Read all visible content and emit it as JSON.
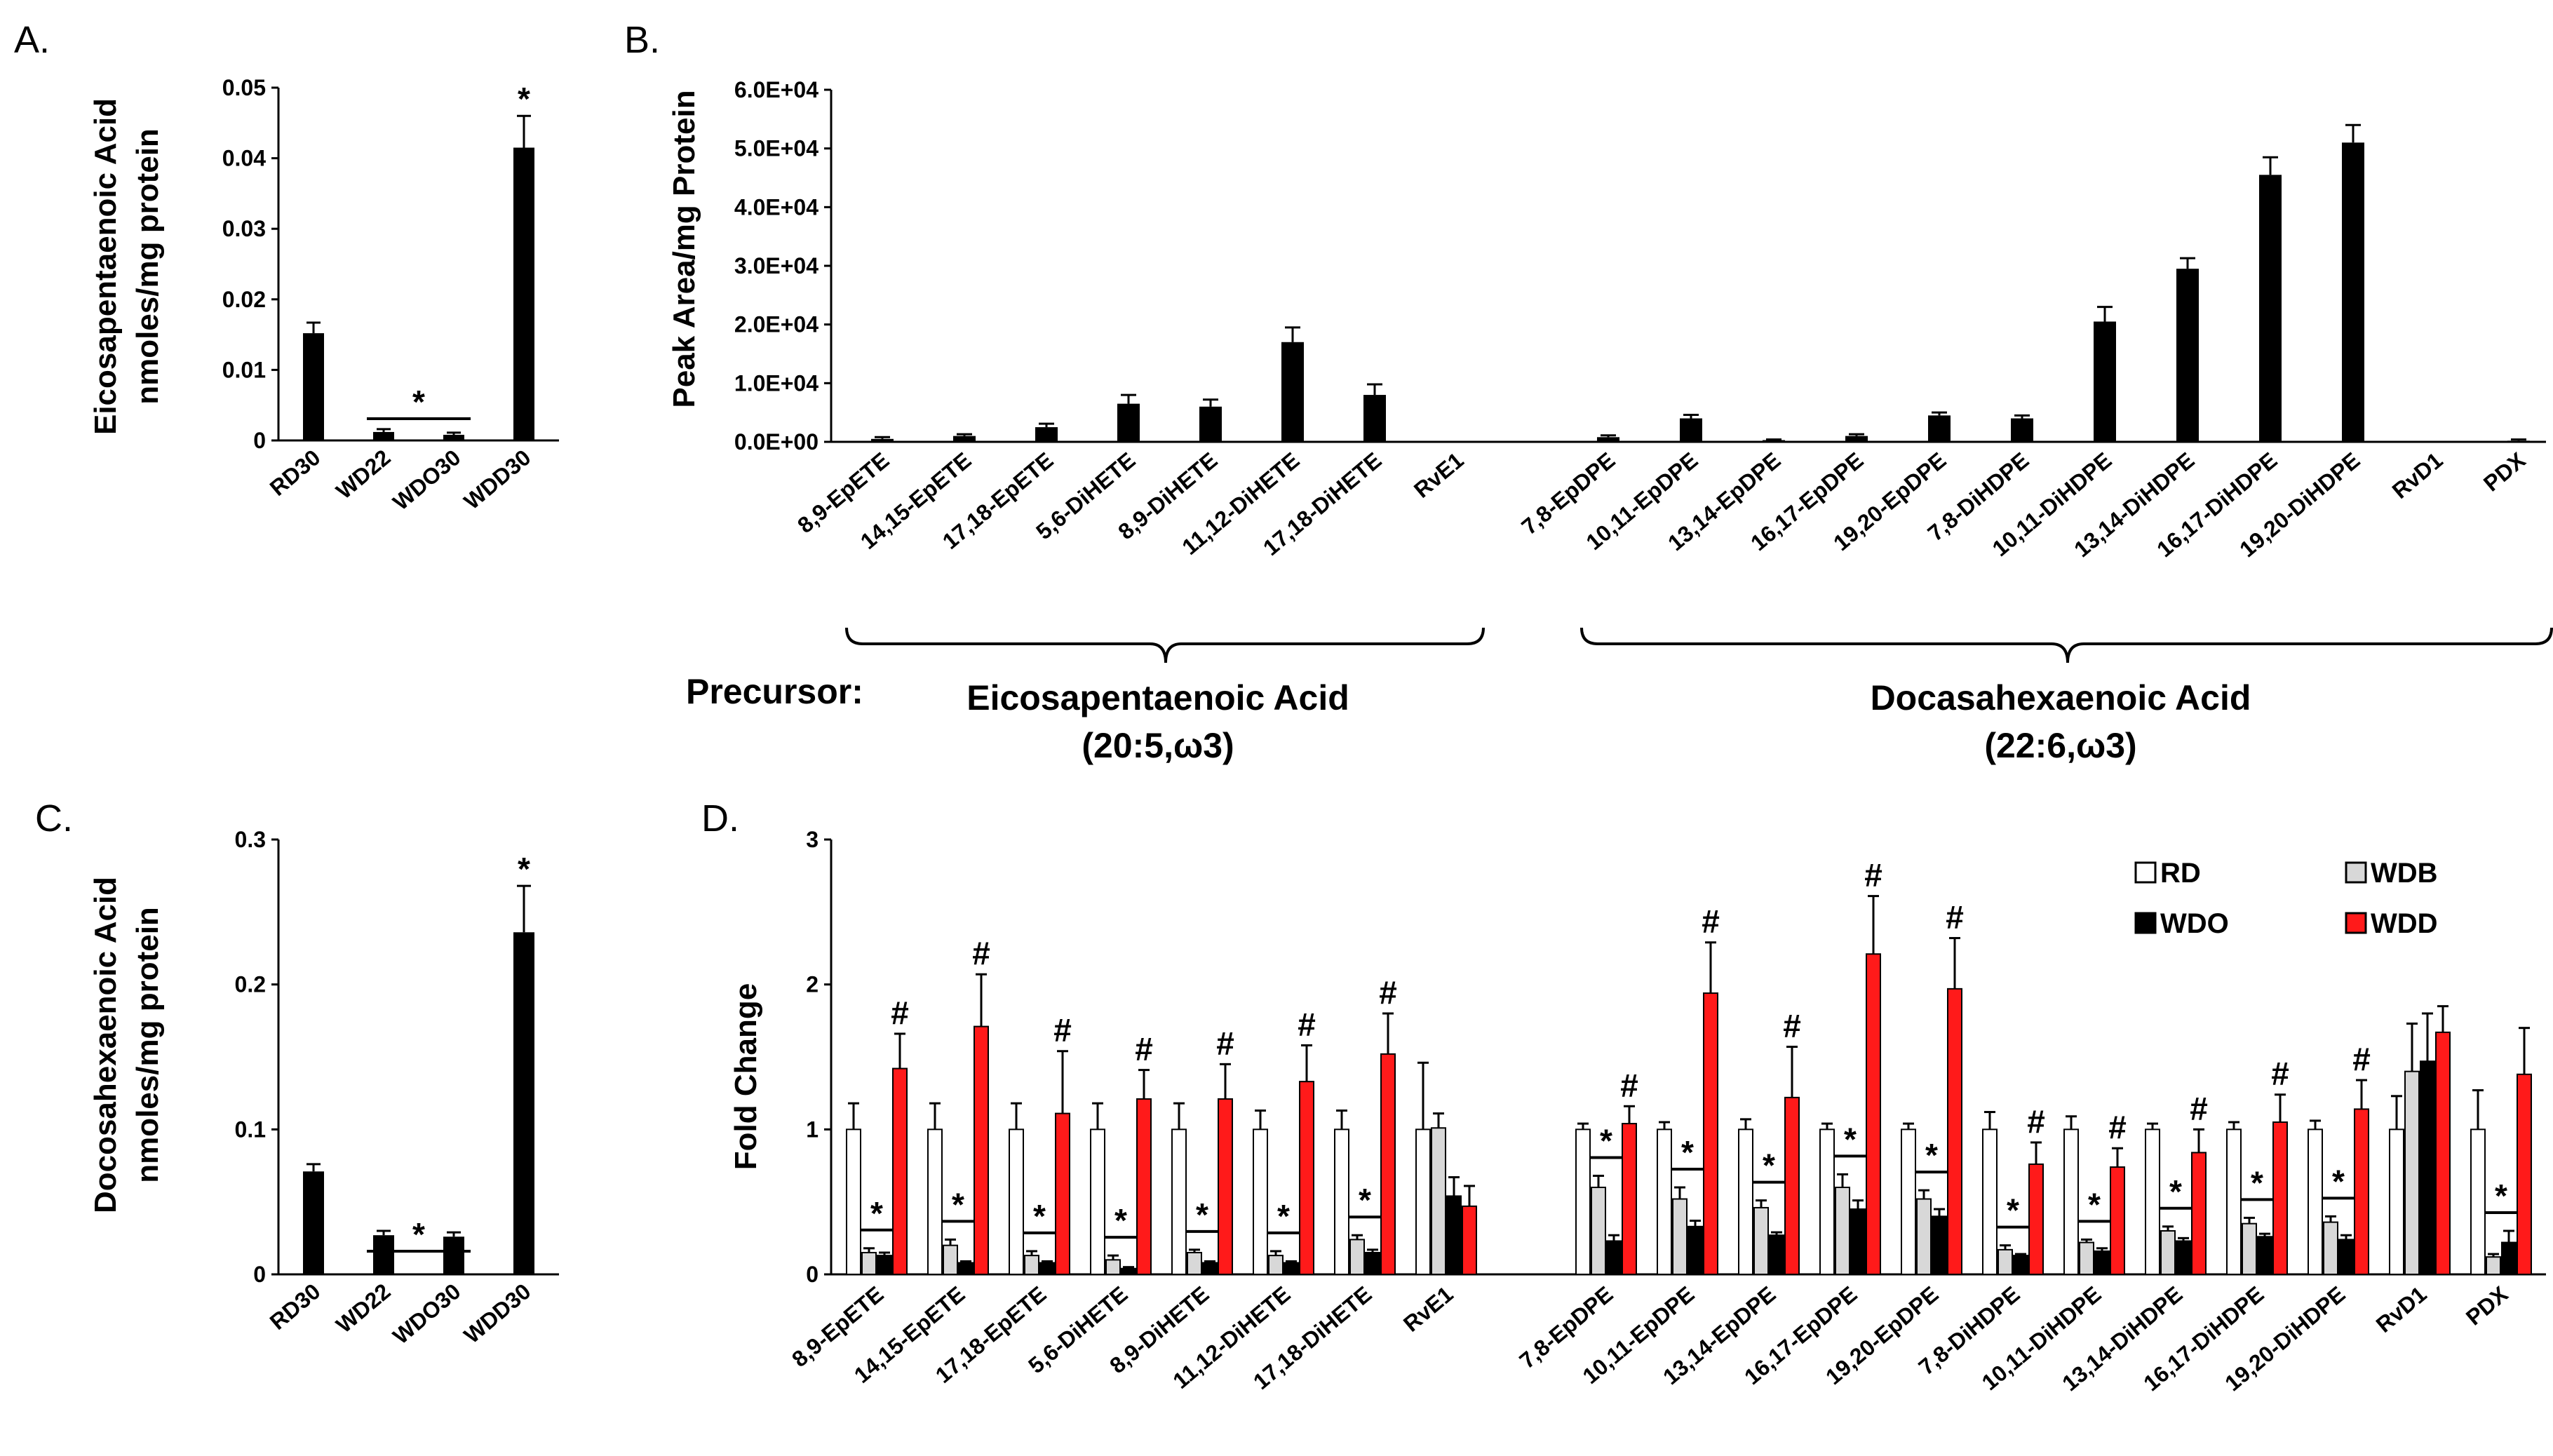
{
  "panel_labels": {
    "a": "A.",
    "b": "B.",
    "c": "C.",
    "d": "D."
  },
  "precursor": {
    "label": "Precursor:",
    "epa_name": "Eicosapentaenoic Acid",
    "epa_formula": "(20:5,ω3)",
    "dha_name": "Docasahexaenoic Acid",
    "dha_formula": "(22:6,ω3)"
  },
  "chart_data": [
    {
      "id": "A",
      "type": "bar",
      "title": "",
      "ylabel_line1": "Eicosapentaenoic Acid",
      "ylabel_line2": "nmoles/mg protein",
      "categories": [
        "RD30",
        "WD22",
        "WDO30",
        "WDD30"
      ],
      "values": [
        0.0152,
        0.0012,
        0.0008,
        0.0415
      ],
      "errors": [
        0.0015,
        0.0004,
        0.0003,
        0.0045
      ],
      "ylim": [
        0,
        0.05
      ],
      "ticks": [
        0,
        0.01,
        0.02,
        0.03,
        0.04,
        0.05
      ],
      "tick_labels": [
        "0",
        "0.01",
        "0.02",
        "0.03",
        "0.04",
        "0.05"
      ],
      "annotations": [
        {
          "text": "*",
          "target": "WDD30"
        },
        {
          "text": "*",
          "target": "WD22-WDO30 bracket"
        }
      ],
      "color": "#000000"
    },
    {
      "id": "B",
      "type": "bar",
      "ylabel": "Peak Area/mg Protein",
      "categories": [
        "8,9-EpETE",
        "14,15-EpETE",
        "17,18-EpETE",
        "5,6-DiHETE",
        "8,9-DiHETE",
        "11,12-DiHETE",
        "17,18-DiHETE",
        "RvE1",
        "7,8-EpDPE",
        "10,11-EpDPE",
        "13,14-EpDPE",
        "16,17-EpDPE",
        "19,20-EpDPE",
        "7,8-DiHDPE",
        "10,11-DiHDPE",
        "13,14-DiHDPE",
        "16,17-DiHDPE",
        "19,20-DiHDPE",
        "RvD1",
        "PDX"
      ],
      "values": [
        500,
        1000,
        2500,
        6500,
        6000,
        17000,
        8000,
        0,
        800,
        4000,
        300,
        1000,
        4500,
        4000,
        20500,
        29500,
        45500,
        51000,
        0,
        200
      ],
      "errors": [
        300,
        300,
        600,
        1500,
        1200,
        2500,
        1800,
        0,
        300,
        600,
        100,
        300,
        500,
        500,
        2500,
        1800,
        3000,
        3000,
        0,
        200
      ],
      "ylim": [
        0,
        60000
      ],
      "ticks": [
        0,
        10000,
        20000,
        30000,
        40000,
        50000,
        60000
      ],
      "tick_labels": [
        "0.0E+00",
        "1.0E+04",
        "2.0E+04",
        "3.0E+04",
        "4.0E+04",
        "5.0E+04",
        "6.0E+04"
      ],
      "groups": [
        {
          "name": "Eicosapentaenoic Acid",
          "from": 0,
          "to": 7
        },
        {
          "name": "Docasahexaenoic Acid",
          "from": 8,
          "to": 19
        }
      ],
      "color": "#000000"
    },
    {
      "id": "C",
      "type": "bar",
      "ylabel_line1": "Docosahexaenoic Acid",
      "ylabel_line2": "nmoles/mg protein",
      "categories": [
        "RD30",
        "WD22",
        "WDO30",
        "WDD30"
      ],
      "values": [
        0.071,
        0.027,
        0.026,
        0.236
      ],
      "errors": [
        0.005,
        0.003,
        0.003,
        0.032
      ],
      "ylim": [
        0,
        0.3
      ],
      "ticks": [
        0,
        0.1,
        0.2,
        0.3
      ],
      "tick_labels": [
        "0",
        "0.1",
        "0.2",
        "0.3"
      ],
      "annotations": [
        {
          "text": "*",
          "target": "WDD30"
        },
        {
          "text": "*",
          "target": "WD22-WDO30 bracket"
        }
      ],
      "color": "#000000"
    },
    {
      "id": "D",
      "type": "bar",
      "ylabel": "Fold Change",
      "categories": [
        "8,9-EpETE",
        "14,15-EpETE",
        "17,18-EpETE",
        "5,6-DiHETE",
        "8,9-DiHETE",
        "11,12-DiHETE",
        "17,18-DiHETE",
        "RvE1",
        "7,8-EpDPE",
        "10,11-EpDPE",
        "13,14-EpDPE",
        "16,17-EpDPE",
        "19,20-EpDPE",
        "7,8-DiHDPE",
        "10,11-DiHDPE",
        "13,14-DiHDPE",
        "16,17-DiHDPE",
        "19,20-DiHDPE",
        "RvD1",
        "PDX"
      ],
      "ylim": [
        0,
        3
      ],
      "ticks": [
        0,
        1,
        2,
        3
      ],
      "tick_labels": [
        "0",
        "1",
        "2",
        "3"
      ],
      "legend": [
        "RD",
        "WDB",
        "WDO",
        "WDD"
      ],
      "series": [
        {
          "name": "RD",
          "color": "#ffffff",
          "values": [
            1,
            1,
            1,
            1,
            1,
            1,
            1,
            1,
            1,
            1,
            1,
            1,
            1,
            1,
            1,
            1,
            1,
            1,
            1,
            1
          ],
          "errors": [
            0.18,
            0.18,
            0.18,
            0.18,
            0.18,
            0.13,
            0.13,
            0.46,
            0.04,
            0.05,
            0.07,
            0.04,
            0.04,
            0.12,
            0.09,
            0.04,
            0.05,
            0.06,
            0.23,
            0.27
          ]
        },
        {
          "name": "WDB",
          "color": "#d8d8d8",
          "values": [
            0.15,
            0.2,
            0.13,
            0.1,
            0.15,
            0.13,
            0.24,
            1.01,
            0.6,
            0.52,
            0.46,
            0.6,
            0.52,
            0.17,
            0.22,
            0.3,
            0.35,
            0.36,
            1.4,
            0.12
          ],
          "errors": [
            0.03,
            0.04,
            0.03,
            0.03,
            0.02,
            0.03,
            0.03,
            0.1,
            0.08,
            0.08,
            0.05,
            0.09,
            0.06,
            0.03,
            0.02,
            0.03,
            0.04,
            0.04,
            0.33,
            0.02
          ]
        },
        {
          "name": "WDO",
          "color": "#000000",
          "values": [
            0.13,
            0.08,
            0.08,
            0.04,
            0.08,
            0.08,
            0.15,
            0.54,
            0.23,
            0.33,
            0.27,
            0.45,
            0.4,
            0.13,
            0.16,
            0.23,
            0.26,
            0.24,
            1.47,
            0.22
          ],
          "errors": [
            0.02,
            0.01,
            0.01,
            0.01,
            0.01,
            0.01,
            0.02,
            0.13,
            0.04,
            0.04,
            0.02,
            0.06,
            0.05,
            0.01,
            0.02,
            0.02,
            0.02,
            0.03,
            0.33,
            0.08
          ]
        },
        {
          "name": "WDD",
          "color": "#ff1a1a",
          "values": [
            1.42,
            1.71,
            1.11,
            1.21,
            1.21,
            1.33,
            1.52,
            0.47,
            1.04,
            1.94,
            1.22,
            2.21,
            1.97,
            0.76,
            0.74,
            0.84,
            1.05,
            1.14,
            1.67,
            1.38
          ],
          "errors": [
            0.24,
            0.36,
            0.43,
            0.2,
            0.24,
            0.25,
            0.28,
            0.14,
            0.12,
            0.35,
            0.35,
            0.4,
            0.35,
            0.15,
            0.13,
            0.16,
            0.19,
            0.2,
            0.18,
            0.32
          ]
        }
      ],
      "annotations": {
        "star": "*",
        "hash": "#",
        "note": "* above WDB/WDO pair and # above WDD bar for every lipid except RvE1 and RvD1 (PDX: * only)"
      }
    }
  ]
}
